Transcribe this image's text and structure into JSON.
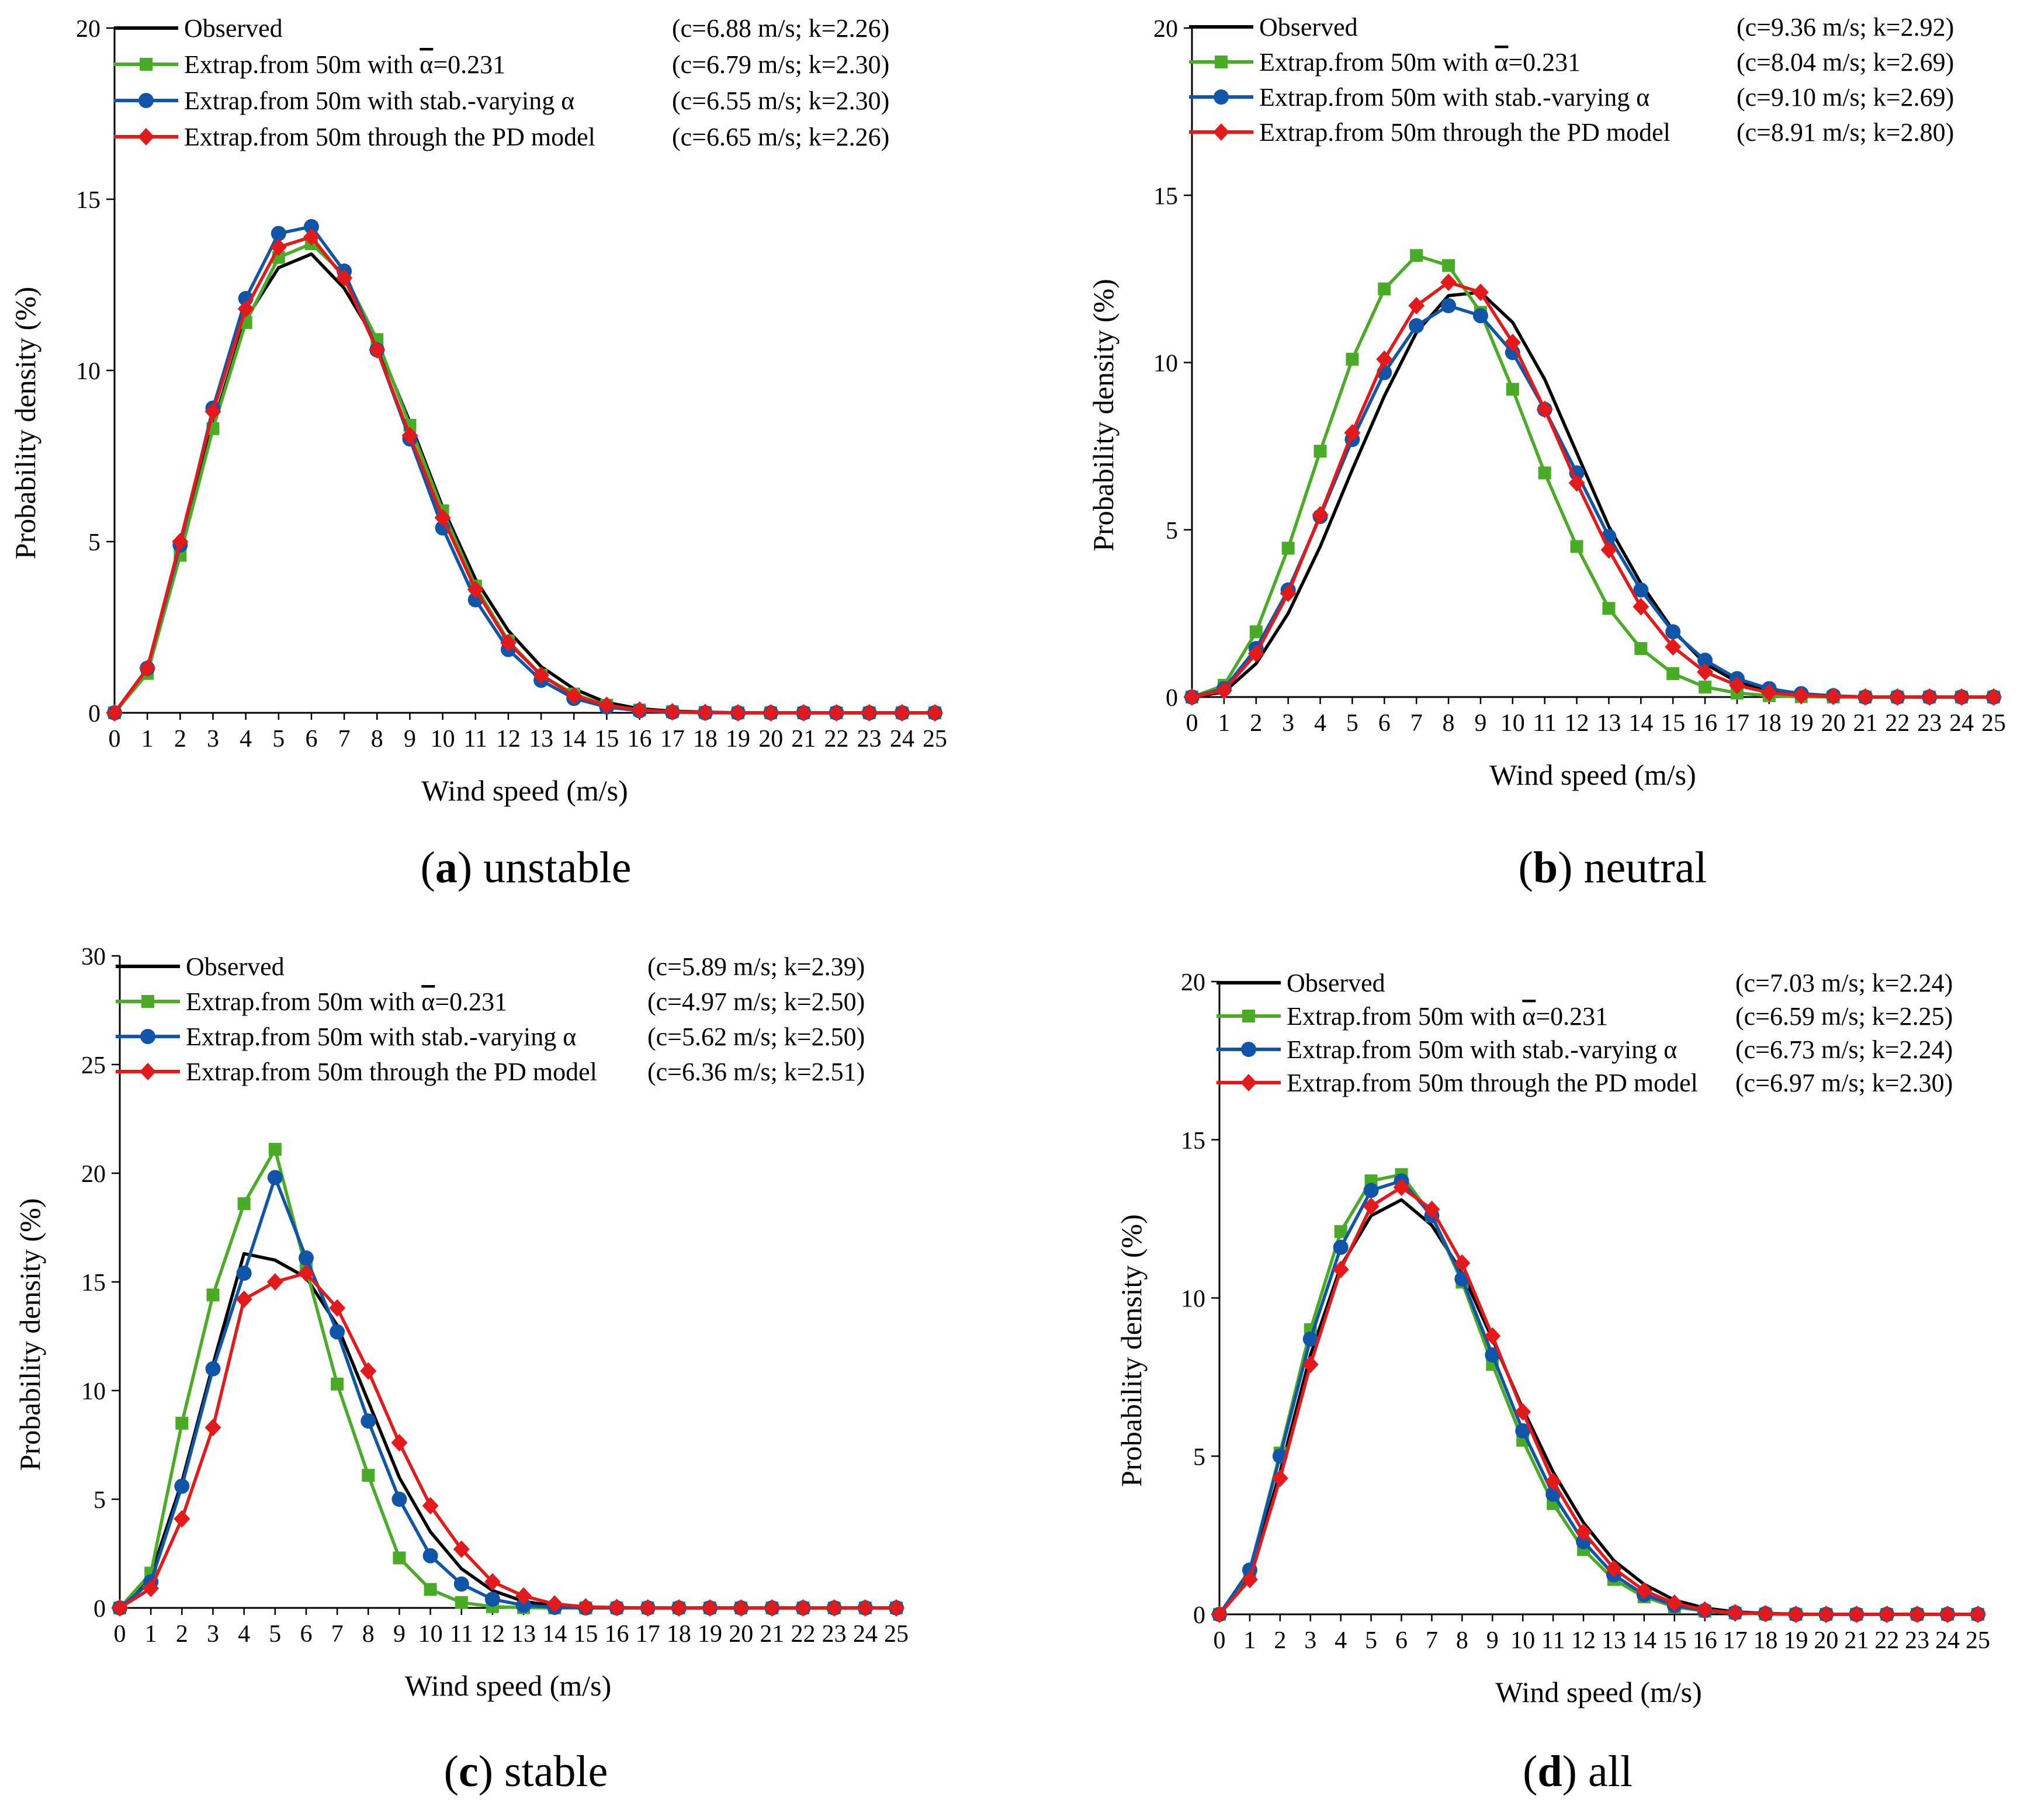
{
  "figure": {
    "colors": {
      "observed": "#000000",
      "const_alpha": "#4aab27",
      "stab_alpha": "#1155a8",
      "pd_model": "#e31a1c"
    },
    "markers": {
      "observed": "none",
      "const_alpha": "square",
      "stab_alpha": "circle",
      "pd_model": "diamond"
    }
  },
  "chart_data": [
    {
      "type": "line",
      "caption": {
        "letter": "a",
        "text": "unstable"
      },
      "xlabel": "Wind speed (m/s)",
      "ylabel": "Probability density (%)",
      "xlim": [
        0,
        25
      ],
      "ylim": [
        0,
        20
      ],
      "yticks": [
        0,
        5,
        10,
        15,
        20
      ],
      "grid": false,
      "legend_position": "top",
      "x": [
        0,
        1,
        2,
        3,
        4,
        5,
        6,
        7,
        8,
        9,
        10,
        11,
        12,
        13,
        14,
        15,
        16,
        17,
        18,
        19,
        20,
        21,
        22,
        23,
        24,
        25
      ],
      "series": [
        {
          "name": "Observed",
          "params": "(c=6.88 m/s; k=2.26)",
          "values": [
            0,
            1.3,
            4.8,
            8.4,
            11.5,
            13.0,
            13.4,
            12.4,
            10.8,
            8.5,
            6.0,
            3.9,
            2.4,
            1.35,
            0.7,
            0.3,
            0.12,
            0.05,
            0.02,
            0,
            0,
            0,
            0,
            0,
            0,
            0
          ]
        },
        {
          "name": "Extrap.from 50m with ",
          "name_symbol": "α",
          "name_tail": "=0.231",
          "params": "(c=6.79 m/s; k=2.30)",
          "values": [
            0,
            1.15,
            4.6,
            8.3,
            11.4,
            13.3,
            13.7,
            12.8,
            10.9,
            8.4,
            5.9,
            3.7,
            2.1,
            1.1,
            0.55,
            0.22,
            0.08,
            0.03,
            0.01,
            0,
            0,
            0,
            0,
            0,
            0,
            0
          ]
        },
        {
          "name": "Extrap.from 50m with stab.-varying α",
          "params": "(c=6.55 m/s; k=2.30)",
          "values": [
            0,
            1.3,
            4.9,
            8.9,
            12.1,
            14.0,
            14.2,
            12.9,
            10.6,
            8.0,
            5.4,
            3.3,
            1.85,
            0.95,
            0.42,
            0.17,
            0.06,
            0.02,
            0,
            0,
            0,
            0,
            0,
            0,
            0,
            0
          ]
        },
        {
          "name": "Extrap.from 50m through the PD model",
          "params": "(c=6.65 m/s; k=2.26)",
          "values": [
            0,
            1.3,
            5.0,
            8.8,
            11.8,
            13.6,
            13.9,
            12.7,
            10.6,
            8.1,
            5.7,
            3.6,
            2.05,
            1.1,
            0.5,
            0.22,
            0.08,
            0.03,
            0.01,
            0,
            0,
            0,
            0,
            0,
            0,
            0
          ]
        }
      ]
    },
    {
      "type": "line",
      "caption": {
        "letter": "b",
        "text": "neutral"
      },
      "xlabel": "Wind speed (m/s)",
      "ylabel": "Probability density (%)",
      "xlim": [
        0,
        25
      ],
      "ylim": [
        0,
        20
      ],
      "yticks": [
        0,
        5,
        10,
        15,
        20
      ],
      "grid": false,
      "legend_position": "top",
      "x": [
        0,
        1,
        2,
        3,
        4,
        5,
        6,
        7,
        8,
        9,
        10,
        11,
        12,
        13,
        14,
        15,
        16,
        17,
        18,
        19,
        20,
        21,
        22,
        23,
        24,
        25
      ],
      "series": [
        {
          "name": "Observed",
          "params": "(c=9.36 m/s; k=2.92)",
          "values": [
            0,
            0.15,
            1.0,
            2.5,
            4.5,
            6.8,
            9.0,
            10.9,
            12.0,
            12.1,
            11.2,
            9.5,
            7.3,
            5.1,
            3.4,
            2.0,
            1.0,
            0.45,
            0.18,
            0.06,
            0.02,
            0,
            0,
            0,
            0,
            0
          ]
        },
        {
          "name": "Extrap.from 50m with ",
          "name_symbol": "α",
          "name_tail": "=0.231",
          "params": "(c=8.04 m/s; k=2.69)",
          "values": [
            0,
            0.35,
            1.95,
            4.45,
            7.35,
            10.1,
            12.2,
            13.2,
            12.9,
            11.5,
            9.2,
            6.7,
            4.5,
            2.65,
            1.45,
            0.7,
            0.3,
            0.12,
            0.04,
            0.01,
            0,
            0,
            0,
            0,
            0,
            0
          ]
        },
        {
          "name": "Extrap.from 50m with stab.-varying α",
          "params": "(c=9.10 m/s; k=2.69)",
          "values": [
            0,
            0.25,
            1.45,
            3.2,
            5.4,
            7.7,
            9.7,
            11.1,
            11.7,
            11.4,
            10.3,
            8.6,
            6.7,
            4.8,
            3.2,
            1.95,
            1.1,
            0.55,
            0.25,
            0.1,
            0.04,
            0,
            0,
            0,
            0,
            0
          ]
        },
        {
          "name": "Extrap.from 50m through the PD model",
          "params": "(c=8.91 m/s; k=2.80)",
          "values": [
            0,
            0.2,
            1.3,
            3.1,
            5.45,
            7.9,
            10.1,
            11.7,
            12.4,
            12.1,
            10.6,
            8.6,
            6.4,
            4.4,
            2.7,
            1.5,
            0.75,
            0.35,
            0.13,
            0.05,
            0.02,
            0,
            0,
            0,
            0,
            0
          ]
        }
      ]
    },
    {
      "type": "line",
      "caption": {
        "letter": "c",
        "text": "stable"
      },
      "xlabel": "Wind speed (m/s)",
      "ylabel": "Probability density (%)",
      "xlim": [
        0,
        25
      ],
      "ylim": [
        0,
        30
      ],
      "yticks": [
        0,
        5,
        10,
        15,
        20,
        25,
        30
      ],
      "grid": false,
      "legend_position": "top",
      "x": [
        0,
        1,
        2,
        3,
        4,
        5,
        6,
        7,
        8,
        9,
        10,
        11,
        12,
        13,
        14,
        15,
        16,
        17,
        18,
        19,
        20,
        21,
        22,
        23,
        24,
        25
      ],
      "series": [
        {
          "name": "Observed",
          "params": "(c=5.89 m/s; k=2.39)",
          "values": [
            0,
            1.5,
            5.8,
            11.2,
            16.3,
            16.0,
            15.2,
            13.0,
            9.5,
            6.0,
            3.5,
            1.8,
            0.8,
            0.3,
            0.1,
            0.03,
            0,
            0,
            0,
            0,
            0,
            0,
            0,
            0,
            0,
            0
          ]
        },
        {
          "name": "Extrap.from 50m with ",
          "name_symbol": "α",
          "name_tail": "=0.231",
          "params": "(c=4.97 m/s; k=2.50)",
          "values": [
            0,
            1.6,
            8.5,
            14.4,
            18.6,
            21.1,
            15.6,
            10.3,
            6.1,
            2.3,
            0.85,
            0.25,
            0.06,
            0.01,
            0,
            0,
            0,
            0,
            0,
            0,
            0,
            0,
            0,
            0,
            0,
            0
          ]
        },
        {
          "name": "Extrap.from 50m with stab.-varying α",
          "params": "(c=5.62 m/s; k=2.50)",
          "values": [
            0,
            1.2,
            5.6,
            11.0,
            15.4,
            19.8,
            16.1,
            12.7,
            8.6,
            5.0,
            2.4,
            1.1,
            0.4,
            0.12,
            0.03,
            0,
            0,
            0,
            0,
            0,
            0,
            0,
            0,
            0,
            0,
            0
          ]
        },
        {
          "name": "Extrap.from 50m through the PD model",
          "params": "(c=6.36 m/s; k=2.51)",
          "values": [
            0,
            0.9,
            4.1,
            8.3,
            14.2,
            15.0,
            15.4,
            13.8,
            10.9,
            7.6,
            4.7,
            2.7,
            1.2,
            0.55,
            0.18,
            0.05,
            0.02,
            0,
            0,
            0,
            0,
            0,
            0,
            0,
            0,
            0
          ]
        }
      ]
    },
    {
      "type": "line",
      "caption": {
        "letter": "d",
        "text": "all"
      },
      "xlabel": "Wind speed (m/s)",
      "ylabel": "Probability density (%)",
      "xlim": [
        0,
        25
      ],
      "ylim": [
        0,
        20
      ],
      "yticks": [
        0,
        5,
        10,
        15,
        20
      ],
      "grid": false,
      "legend_position": "top",
      "x": [
        0,
        1,
        2,
        3,
        4,
        5,
        6,
        7,
        8,
        9,
        10,
        11,
        12,
        13,
        14,
        15,
        16,
        17,
        18,
        19,
        20,
        21,
        22,
        23,
        24,
        25
      ],
      "series": [
        {
          "name": "Observed",
          "params": "(c=7.03 m/s; k=2.24)",
          "values": [
            0,
            1.2,
            4.5,
            8.2,
            11.0,
            12.6,
            13.1,
            12.3,
            10.8,
            8.7,
            6.5,
            4.5,
            2.9,
            1.7,
            0.95,
            0.45,
            0.2,
            0.08,
            0.03,
            0.01,
            0,
            0,
            0,
            0,
            0,
            0
          ]
        },
        {
          "name": "Extrap.from 50m with ",
          "name_symbol": "α",
          "name_tail": "=0.231",
          "params": "(c=6.59 m/s; k=2.25)",
          "values": [
            0,
            1.35,
            5.1,
            9.0,
            12.1,
            13.7,
            13.9,
            12.6,
            10.5,
            7.9,
            5.5,
            3.5,
            2.05,
            1.1,
            0.55,
            0.24,
            0.1,
            0.04,
            0.01,
            0,
            0,
            0,
            0,
            0,
            0,
            0
          ]
        },
        {
          "name": "Extrap.from 50m with stab.-varying α",
          "params": "(c=6.73 m/s; k=2.24)",
          "values": [
            0,
            1.4,
            5.0,
            8.7,
            11.6,
            13.4,
            13.7,
            12.6,
            10.6,
            8.2,
            5.8,
            3.8,
            2.3,
            1.25,
            0.62,
            0.28,
            0.12,
            0.05,
            0.02,
            0,
            0,
            0,
            0,
            0,
            0,
            0
          ]
        },
        {
          "name": "Extrap.from 50m through the PD model",
          "params": "(c=6.97 m/s; k=2.30)",
          "values": [
            0,
            1.1,
            4.3,
            7.9,
            10.9,
            12.9,
            13.5,
            12.8,
            11.1,
            8.8,
            6.4,
            4.2,
            2.6,
            1.45,
            0.75,
            0.35,
            0.14,
            0.05,
            0.02,
            0,
            0,
            0,
            0,
            0,
            0,
            0
          ]
        }
      ]
    }
  ]
}
